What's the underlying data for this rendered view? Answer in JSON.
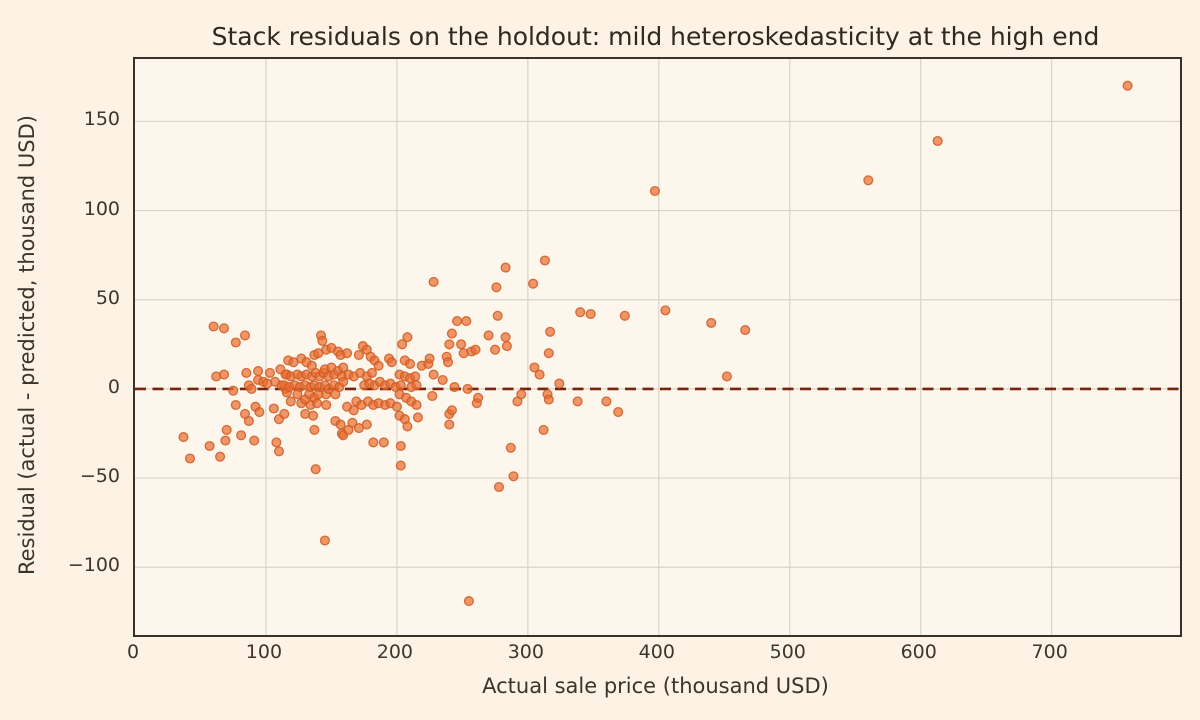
{
  "colors": {
    "page_background": "#fcf3e4",
    "plot_background": "#fdf6ec",
    "grid": "#d8d3c8",
    "frame": "#3a322a",
    "text": "#3a342c",
    "point_fill": "#e86c30",
    "point_edge": "#cf5a20",
    "zero_line": "#76230f"
  },
  "chart_data": {
    "type": "scatter",
    "title": "Stack residuals on the holdout: mild heteroskedasticity at the high end",
    "xlabel": "Actual sale price (thousand USD)",
    "ylabel": "Residual (actual - predicted, thousand USD)",
    "xlim": [
      0,
      798
    ],
    "ylim": [
      -138,
      185
    ],
    "grid": true,
    "legend": "none",
    "x_ticks": [
      {
        "value": 0,
        "label": "0"
      },
      {
        "value": 100,
        "label": "100"
      },
      {
        "value": 200,
        "label": "200"
      },
      {
        "value": 300,
        "label": "300"
      },
      {
        "value": 400,
        "label": "400"
      },
      {
        "value": 500,
        "label": "500"
      },
      {
        "value": 600,
        "label": "600"
      },
      {
        "value": 700,
        "label": "700"
      }
    ],
    "y_ticks": [
      {
        "value": -100,
        "label": "−100"
      },
      {
        "value": -50,
        "label": "−50"
      },
      {
        "value": 0,
        "label": "0"
      },
      {
        "value": 50,
        "label": "50"
      },
      {
        "value": 100,
        "label": "100"
      },
      {
        "value": 150,
        "label": "150"
      }
    ],
    "zero_line": {
      "value": 0,
      "style": "dashed",
      "color": "#76230f",
      "dash": [
        11,
        6.5
      ],
      "width": 2.6
    },
    "marker": {
      "shape": "circle",
      "radius": 4.4,
      "fill": "#e86c30",
      "fill_opacity": 0.7,
      "edge": "#cf5a20",
      "edge_opacity": 0.85,
      "edge_width": 1.3
    },
    "points": [
      [
        37,
        -27
      ],
      [
        42,
        -39
      ],
      [
        57,
        -32
      ],
      [
        60,
        35
      ],
      [
        62,
        7
      ],
      [
        65,
        -38
      ],
      [
        68,
        34
      ],
      [
        68,
        8
      ],
      [
        69,
        -29
      ],
      [
        70,
        -23
      ],
      [
        75,
        -1
      ],
      [
        77,
        26
      ],
      [
        77,
        -9
      ],
      [
        81,
        -26
      ],
      [
        84,
        30
      ],
      [
        84,
        -14
      ],
      [
        85,
        9
      ],
      [
        87,
        2
      ],
      [
        87,
        -18
      ],
      [
        89,
        0
      ],
      [
        91,
        -29
      ],
      [
        92,
        -10
      ],
      [
        94,
        10
      ],
      [
        94,
        5
      ],
      [
        95,
        -13
      ],
      [
        98,
        4
      ],
      [
        101,
        3
      ],
      [
        103,
        9
      ],
      [
        106,
        -11
      ],
      [
        107,
        4
      ],
      [
        108,
        -30
      ],
      [
        110,
        -35
      ],
      [
        110,
        -17
      ],
      [
        111,
        11
      ],
      [
        112,
        2
      ],
      [
        114,
        -14
      ],
      [
        115,
        0
      ],
      [
        116,
        8
      ],
      [
        114,
        2
      ],
      [
        115,
        8
      ],
      [
        116,
        -2
      ],
      [
        117,
        16
      ],
      [
        118,
        1
      ],
      [
        119,
        7
      ],
      [
        119,
        -7
      ],
      [
        121,
        15
      ],
      [
        122,
        2
      ],
      [
        124,
        8
      ],
      [
        124,
        -3
      ],
      [
        126,
        1
      ],
      [
        127,
        17
      ],
      [
        127,
        7
      ],
      [
        127,
        -8
      ],
      [
        130,
        2
      ],
      [
        130,
        -6
      ],
      [
        130,
        -14
      ],
      [
        131,
        15
      ],
      [
        131,
        8
      ],
      [
        133,
        -3
      ],
      [
        134,
        1
      ],
      [
        134,
        -9
      ],
      [
        135,
        13
      ],
      [
        135,
        7
      ],
      [
        136,
        -15
      ],
      [
        137,
        19
      ],
      [
        137,
        2
      ],
      [
        137,
        -5
      ],
      [
        137,
        -23
      ],
      [
        138,
        9
      ],
      [
        138,
        -45
      ],
      [
        139,
        -8
      ],
      [
        140,
        20
      ],
      [
        140,
        -3
      ],
      [
        141,
        7
      ],
      [
        141,
        1
      ],
      [
        142,
        30
      ],
      [
        143,
        27
      ],
      [
        144,
        9
      ],
      [
        145,
        11
      ],
      [
        145,
        2
      ],
      [
        145,
        -85
      ],
      [
        146,
        22
      ],
      [
        146,
        -3
      ],
      [
        146,
        -9
      ],
      [
        148,
        7
      ],
      [
        148,
        0
      ],
      [
        150,
        23
      ],
      [
        150,
        12
      ],
      [
        152,
        8
      ],
      [
        152,
        2
      ],
      [
        153,
        -3
      ],
      [
        153,
        -18
      ],
      [
        155,
        21
      ],
      [
        155,
        10
      ],
      [
        156,
        1
      ],
      [
        157,
        19
      ],
      [
        157,
        -20
      ],
      [
        158,
        7
      ],
      [
        158,
        -25
      ],
      [
        159,
        12
      ],
      [
        159,
        4
      ],
      [
        159,
        -26
      ],
      [
        162,
        20
      ],
      [
        162,
        -10
      ],
      [
        163,
        8
      ],
      [
        163,
        -23
      ],
      [
        166,
        -19
      ],
      [
        167,
        7
      ],
      [
        167,
        -12
      ],
      [
        169,
        -7
      ],
      [
        171,
        19
      ],
      [
        171,
        -22
      ],
      [
        172,
        9
      ],
      [
        173,
        -9
      ],
      [
        174,
        24
      ],
      [
        175,
        2
      ],
      [
        177,
        22
      ],
      [
        177,
        7
      ],
      [
        177,
        -20
      ],
      [
        178,
        -7
      ],
      [
        179,
        3
      ],
      [
        180,
        18
      ],
      [
        181,
        9
      ],
      [
        182,
        -9
      ],
      [
        182,
        -30
      ],
      [
        183,
        16
      ],
      [
        183,
        2
      ],
      [
        186,
        13
      ],
      [
        186,
        -8
      ],
      [
        187,
        4
      ],
      [
        190,
        -30
      ],
      [
        191,
        2
      ],
      [
        191,
        -9
      ],
      [
        194,
        17
      ],
      [
        195,
        3
      ],
      [
        195,
        -8
      ],
      [
        196,
        15
      ],
      [
        199,
        1
      ],
      [
        200,
        -10
      ],
      [
        202,
        8
      ],
      [
        202,
        -3
      ],
      [
        202,
        -15
      ],
      [
        203,
        2
      ],
      [
        203,
        -32
      ],
      [
        203,
        -43
      ],
      [
        204,
        25
      ],
      [
        206,
        16
      ],
      [
        206,
        7
      ],
      [
        206,
        -17
      ],
      [
        207,
        -5
      ],
      [
        208,
        29
      ],
      [
        208,
        -21
      ],
      [
        210,
        14
      ],
      [
        210,
        6
      ],
      [
        211,
        1
      ],
      [
        211,
        -7
      ],
      [
        214,
        7
      ],
      [
        215,
        2
      ],
      [
        215,
        -9
      ],
      [
        216,
        -16
      ],
      [
        219,
        13
      ],
      [
        224,
        14
      ],
      [
        225,
        17
      ],
      [
        227,
        -4
      ],
      [
        228,
        60
      ],
      [
        228,
        8
      ],
      [
        235,
        5
      ],
      [
        238,
        18
      ],
      [
        239,
        15
      ],
      [
        240,
        25
      ],
      [
        240,
        -14
      ],
      [
        240,
        -20
      ],
      [
        242,
        31
      ],
      [
        242,
        -12
      ],
      [
        244,
        1
      ],
      [
        246,
        38
      ],
      [
        249,
        25
      ],
      [
        251,
        20
      ],
      [
        253,
        38
      ],
      [
        254,
        0
      ],
      [
        255,
        -119
      ],
      [
        257,
        21
      ],
      [
        260,
        22
      ],
      [
        261,
        -8
      ],
      [
        262,
        -5
      ],
      [
        270,
        30
      ],
      [
        275,
        22
      ],
      [
        276,
        57
      ],
      [
        277,
        41
      ],
      [
        278,
        -55
      ],
      [
        283,
        68
      ],
      [
        283,
        29
      ],
      [
        284,
        24
      ],
      [
        287,
        -33
      ],
      [
        289,
        -49
      ],
      [
        292,
        -7
      ],
      [
        295,
        -3
      ],
      [
        304,
        59
      ],
      [
        305,
        12
      ],
      [
        309,
        8
      ],
      [
        312,
        -23
      ],
      [
        313,
        72
      ],
      [
        315,
        -3
      ],
      [
        316,
        20
      ],
      [
        316,
        -6
      ],
      [
        317,
        32
      ],
      [
        324,
        3
      ],
      [
        338,
        -7
      ],
      [
        340,
        43
      ],
      [
        348,
        42
      ],
      [
        360,
        -7
      ],
      [
        369,
        -13
      ],
      [
        374,
        41
      ],
      [
        397,
        111
      ],
      [
        405,
        44
      ],
      [
        440,
        37
      ],
      [
        452,
        7
      ],
      [
        466,
        33
      ],
      [
        560,
        117
      ],
      [
        613,
        139
      ],
      [
        758,
        170
      ]
    ]
  }
}
